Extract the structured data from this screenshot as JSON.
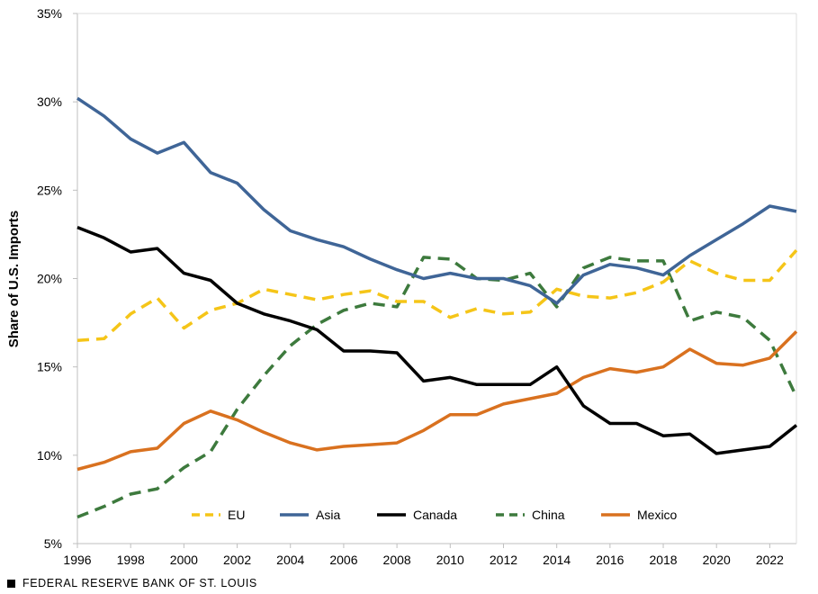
{
  "source": "FEDERAL RESERVE BANK OF ST. LOUIS",
  "chart_data": {
    "type": "line",
    "title": "",
    "xlabel": "",
    "ylabel": "Share of U.S. Imports",
    "xlim": [
      1996,
      2023
    ],
    "ylim": [
      5,
      35
    ],
    "yticks": [
      5,
      10,
      15,
      20,
      25,
      30,
      35
    ],
    "ytick_labels": [
      "5%",
      "10%",
      "15%",
      "20%",
      "25%",
      "30%",
      "35%"
    ],
    "xticks": [
      1996,
      1998,
      2000,
      2002,
      2004,
      2006,
      2008,
      2010,
      2012,
      2014,
      2016,
      2018,
      2020,
      2022
    ],
    "xtick_labels": [
      "1996",
      "1998",
      "2000",
      "2002",
      "2004",
      "2006",
      "2008",
      "2010",
      "2012",
      "2014",
      "2016",
      "2018",
      "2020",
      "2022"
    ],
    "grid": false,
    "legend_position": "bottom-inside",
    "x": [
      1996,
      1997,
      1998,
      1999,
      2000,
      2001,
      2002,
      2003,
      2004,
      2005,
      2006,
      2007,
      2008,
      2009,
      2010,
      2011,
      2012,
      2013,
      2014,
      2015,
      2016,
      2017,
      2018,
      2019,
      2020,
      2021,
      2022,
      2023
    ],
    "series": [
      {
        "name": "EU",
        "color": "#F5C518",
        "dash": "dashed",
        "values": [
          16.5,
          16.6,
          18.0,
          18.9,
          17.2,
          18.2,
          18.6,
          19.4,
          19.1,
          18.8,
          19.1,
          19.3,
          18.7,
          18.7,
          17.8,
          18.3,
          18.0,
          18.1,
          19.4,
          19.0,
          18.9,
          19.2,
          19.8,
          21.0,
          20.3,
          19.9,
          19.9,
          21.6
        ]
      },
      {
        "name": "Asia",
        "color": "#3F6597",
        "dash": "solid",
        "values": [
          30.2,
          29.2,
          27.9,
          27.1,
          27.7,
          26.0,
          25.4,
          23.9,
          22.7,
          22.2,
          21.8,
          21.1,
          20.5,
          20.0,
          20.3,
          20.0,
          20.0,
          19.6,
          18.6,
          20.2,
          20.8,
          20.6,
          20.2,
          21.3,
          22.2,
          23.1,
          24.1,
          23.8
        ]
      },
      {
        "name": "Canada",
        "color": "#000000",
        "dash": "solid",
        "values": [
          22.9,
          22.3,
          21.5,
          21.7,
          20.3,
          19.9,
          18.6,
          18.0,
          17.6,
          17.1,
          15.9,
          15.9,
          15.8,
          14.2,
          14.4,
          14.0,
          14.0,
          14.0,
          15.0,
          12.8,
          11.8,
          11.8,
          11.1,
          11.2,
          10.1,
          10.3,
          10.5,
          11.7
        ]
      },
      {
        "name": "China",
        "color": "#3D7A3D",
        "dash": "dashed",
        "values": [
          6.5,
          7.1,
          7.8,
          8.1,
          9.3,
          10.2,
          12.6,
          14.5,
          16.2,
          17.4,
          18.2,
          18.6,
          18.4,
          21.2,
          21.1,
          20.0,
          19.9,
          20.3,
          18.4,
          20.6,
          21.2,
          21.0,
          21.0,
          17.6,
          18.1,
          17.8,
          16.5,
          13.3
        ]
      },
      {
        "name": "Mexico",
        "color": "#D9711F",
        "dash": "solid",
        "values": [
          9.2,
          9.6,
          10.2,
          10.4,
          11.8,
          12.5,
          12.0,
          11.3,
          10.7,
          10.3,
          10.5,
          10.6,
          10.7,
          11.4,
          12.3,
          12.3,
          12.9,
          13.2,
          13.5,
          14.4,
          14.9,
          14.7,
          15.0,
          16.0,
          15.2,
          15.1,
          15.5,
          17.0
        ]
      }
    ]
  }
}
